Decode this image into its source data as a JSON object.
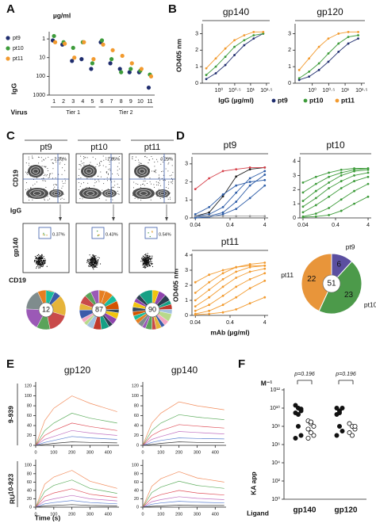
{
  "panel_labels": [
    "A",
    "B",
    "C",
    "D",
    "E",
    "F"
  ],
  "chart_data": [
    {
      "type": "scatter",
      "unit": "µg/ml",
      "ylabel": "IgG",
      "xlabel": "Virus",
      "categories": [
        "1",
        "2",
        "3",
        "4",
        "5",
        "6",
        "7",
        "8",
        "9",
        "10",
        "11"
      ],
      "group_labels": [
        "Tier 1",
        "Tier 2"
      ],
      "log_y": true,
      "ylim": [
        1000,
        0.5
      ],
      "yticks": [
        1,
        10,
        100,
        1000
      ],
      "legend": "left",
      "series": [
        {
          "name": "pt9",
          "color": "#1f2d6e",
          "values": [
            1.2,
            2,
            15,
            12,
            40,
            1.5,
            20,
            40,
            60,
            60,
            400
          ]
        },
        {
          "name": "pt10",
          "color": "#3d9b3a",
          "values": [
            0.7,
            1.5,
            3,
            1.5,
            20,
            1.2,
            12,
            60,
            40,
            50,
            80
          ]
        },
        {
          "name": "pt11",
          "color": "#f29a2e",
          "values": [
            1.5,
            1.8,
            10,
            1.5,
            12,
            2,
            4,
            8,
            20,
            40,
            100
          ]
        }
      ]
    },
    {
      "type": "line",
      "title": "gp140",
      "ylabel": "OD405 nm",
      "xlabel": "IgG (µg/ml)",
      "log_x": true,
      "markers": true,
      "legend": "bottom",
      "x": [
        0.4,
        0.8,
        1.6,
        3.1,
        6.3,
        12.5,
        25
      ],
      "xlim": [
        0.3,
        40
      ],
      "xticks": [
        {
          "value": 1,
          "label": "10⁰"
        },
        {
          "value": 3.16,
          "label": "10⁰·⁵"
        },
        {
          "value": 10,
          "label": "10¹"
        },
        {
          "value": 31.6,
          "label": "10¹·⁵"
        }
      ],
      "ylim": [
        0,
        3.5
      ],
      "yticks": [
        0,
        1,
        2,
        3
      ],
      "series": [
        {
          "name": "pt9",
          "color": "#1f2d6e",
          "values": [
            0.25,
            0.6,
            1.1,
            1.7,
            2.3,
            2.7,
            3.0
          ]
        },
        {
          "name": "pt10",
          "color": "#3d9b3a",
          "values": [
            0.5,
            1.0,
            1.6,
            2.2,
            2.6,
            2.9,
            3.0
          ]
        },
        {
          "name": "pt11",
          "color": "#f29a2e",
          "values": [
            0.9,
            1.5,
            2.1,
            2.6,
            2.9,
            3.1,
            3.1
          ]
        }
      ]
    },
    {
      "type": "line",
      "title": "gp120",
      "log_x": true,
      "markers": true,
      "x": [
        0.4,
        0.8,
        1.6,
        3.1,
        6.3,
        12.5,
        25
      ],
      "xlim": [
        0.3,
        40
      ],
      "xticks": [
        {
          "value": 1,
          "label": "10⁰"
        },
        {
          "value": 3.16,
          "label": "10⁰·⁵"
        },
        {
          "value": 10,
          "label": "10¹"
        },
        {
          "value": 31.6,
          "label": "10¹·⁵"
        }
      ],
      "ylim": [
        0,
        3.5
      ],
      "yticks": [
        0,
        1,
        2,
        3
      ],
      "series": [
        {
          "color": "#1f2d6e",
          "values": [
            0.2,
            0.4,
            0.8,
            1.3,
            1.9,
            2.4,
            2.7
          ]
        },
        {
          "color": "#3d9b3a",
          "values": [
            0.3,
            0.7,
            1.2,
            1.8,
            2.4,
            2.8,
            2.9
          ]
        },
        {
          "color": "#f29a2e",
          "values": [
            0.8,
            1.5,
            2.2,
            2.7,
            3.0,
            3.1,
            3.1
          ]
        }
      ]
    },
    {
      "type": "line",
      "title": "pt9",
      "log_x": true,
      "markers": true,
      "x": [
        0.04,
        0.1,
        0.25,
        0.6,
        1.5,
        4
      ],
      "xlim": [
        0.032,
        5
      ],
      "xticks": [
        0.04,
        0.4,
        4
      ],
      "ylim": [
        0,
        3.3
      ],
      "yticks": [
        0,
        1,
        2,
        3
      ],
      "series": [
        {
          "color": "#222222",
          "values": [
            0.1,
            0.3,
            1.2,
            2.3,
            2.7,
            2.8
          ]
        },
        {
          "color": "#d6404a",
          "values": [
            1.6,
            2.2,
            2.6,
            2.7,
            2.8,
            2.8
          ]
        },
        {
          "color": "#2f5ea8",
          "values": [
            0.1,
            0.2,
            0.6,
            1.4,
            2.2,
            2.6
          ]
        },
        {
          "color": "#2f5ea8",
          "values": [
            0.05,
            0.1,
            0.3,
            0.9,
            1.8,
            2.4
          ]
        },
        {
          "color": "#2f5ea8",
          "values": [
            0.2,
            0.6,
            1.3,
            1.8,
            2.0,
            2.1
          ]
        },
        {
          "color": "#2f5ea8",
          "values": [
            0.0,
            0.05,
            0.2,
            0.5,
            1.1,
            1.8
          ]
        },
        {
          "color": "#999999",
          "values": [
            0.1,
            0.1,
            0.1,
            0.1,
            0.1,
            0.1
          ]
        }
      ]
    },
    {
      "type": "line",
      "title": "pt10",
      "log_x": true,
      "markers": true,
      "x": [
        0.04,
        0.1,
        0.25,
        0.6,
        1.5,
        4
      ],
      "xlim": [
        0.032,
        5
      ],
      "xticks": [
        0.04,
        0.4,
        4
      ],
      "ylim": [
        0,
        4.2
      ],
      "yticks": [
        0,
        1,
        2,
        3,
        4
      ],
      "series": [
        {
          "color": "#3d9b3a",
          "values": [
            1.8,
            2.4,
            2.9,
            3.2,
            3.4,
            3.5
          ]
        },
        {
          "color": "#3d9b3a",
          "values": [
            1.2,
            1.9,
            2.5,
            3.0,
            3.3,
            3.4
          ]
        },
        {
          "color": "#3d9b3a",
          "values": [
            0.8,
            1.4,
            2.1,
            2.6,
            3.0,
            3.2
          ]
        },
        {
          "color": "#3d9b3a",
          "values": [
            0.4,
            0.9,
            1.5,
            2.1,
            2.6,
            2.9
          ]
        },
        {
          "color": "#3d9b3a",
          "values": [
            2.5,
            2.9,
            3.2,
            3.4,
            3.5,
            3.5
          ]
        },
        {
          "color": "#3d9b3a",
          "values": [
            0.1,
            0.3,
            0.7,
            1.3,
            1.9,
            2.4
          ]
        },
        {
          "color": "#3d9b3a",
          "values": [
            0.05,
            0.1,
            0.2,
            0.5,
            1.0,
            1.5
          ]
        }
      ]
    },
    {
      "type": "line",
      "title": "pt11",
      "ylabel": "OD405 nm",
      "xlabel": "mAb (µg/ml)",
      "log_x": true,
      "markers": true,
      "x": [
        0.04,
        0.1,
        0.25,
        0.6,
        1.5,
        4
      ],
      "xlim": [
        0.032,
        5
      ],
      "xticks": [
        0.04,
        0.4,
        4
      ],
      "ylim": [
        0,
        4
      ],
      "yticks": [
        0,
        1,
        2,
        3,
        4
      ],
      "series": [
        {
          "color": "#f29a2e",
          "values": [
            1.5,
            2.2,
            2.8,
            3.2,
            3.4,
            3.5
          ]
        },
        {
          "color": "#f29a2e",
          "values": [
            1.0,
            1.7,
            2.4,
            2.9,
            3.2,
            3.3
          ]
        },
        {
          "color": "#f29a2e",
          "values": [
            0.6,
            1.2,
            1.9,
            2.5,
            2.9,
            3.1
          ]
        },
        {
          "color": "#f29a2e",
          "values": [
            0.3,
            0.7,
            1.3,
            1.9,
            2.4,
            2.8
          ]
        },
        {
          "color": "#f29a2e",
          "values": [
            0.1,
            0.3,
            0.7,
            1.2,
            1.8,
            2.3
          ]
        },
        {
          "color": "#f29a2e",
          "values": [
            0.05,
            0.1,
            0.2,
            0.4,
            0.8,
            1.2
          ]
        },
        {
          "color": "#f29a2e",
          "values": [
            2.2,
            2.7,
            3.0,
            3.2,
            3.3,
            3.3
          ]
        }
      ]
    },
    {
      "type": "pie",
      "categories": [
        "pt9",
        "pt10",
        "pt11"
      ],
      "values": [
        6,
        23,
        22
      ],
      "colors": [
        "#5b4fa0",
        "#4c9a4a",
        "#e8953a"
      ],
      "total": 51
    },
    {
      "type": "line",
      "title": "gp120",
      "row_label": "9-939",
      "markers": false,
      "x": [
        0,
        50,
        100,
        200,
        300,
        450
      ],
      "xlim": [
        0,
        460
      ],
      "xticks": [
        0,
        100,
        200,
        300,
        400
      ],
      "ylim": [
        0,
        125
      ],
      "yticks": [
        0,
        20,
        40,
        60,
        80,
        100,
        120
      ],
      "series": [
        {
          "color": "#f28b5a",
          "values": [
            0,
            50,
            75,
            100,
            85,
            68
          ]
        },
        {
          "color": "#5fae5f",
          "values": [
            0,
            30,
            45,
            65,
            55,
            45
          ]
        },
        {
          "color": "#e0505a",
          "values": [
            0,
            20,
            30,
            45,
            38,
            30
          ]
        },
        {
          "color": "#c070c0",
          "values": [
            0,
            12,
            18,
            30,
            25,
            20
          ]
        },
        {
          "color": "#5a7fd0",
          "values": [
            0,
            6,
            10,
            18,
            15,
            12
          ]
        },
        {
          "color": "#333333",
          "values": [
            0,
            2,
            4,
            7,
            6,
            5
          ]
        }
      ]
    },
    {
      "type": "line",
      "title": "gp140",
      "markers": false,
      "x": [
        0,
        50,
        100,
        200,
        300,
        450
      ],
      "xlim": [
        0,
        460
      ],
      "xticks": [
        0,
        100,
        200,
        300,
        400
      ],
      "ylim": [
        0,
        125
      ],
      "yticks": [
        0,
        20,
        40,
        60,
        80,
        100,
        120
      ],
      "series": [
        {
          "color": "#f28b5a",
          "values": [
            0,
            45,
            65,
            88,
            80,
            72
          ]
        },
        {
          "color": "#5fae5f",
          "values": [
            0,
            30,
            45,
            62,
            57,
            52
          ]
        },
        {
          "color": "#e0505a",
          "values": [
            0,
            20,
            30,
            42,
            39,
            35
          ]
        },
        {
          "color": "#c070c0",
          "values": [
            0,
            12,
            18,
            28,
            26,
            23
          ]
        },
        {
          "color": "#5a7fd0",
          "values": [
            0,
            6,
            10,
            15,
            14,
            13
          ]
        },
        {
          "color": "#333333",
          "values": [
            0,
            2,
            4,
            7,
            6,
            6
          ]
        }
      ]
    },
    {
      "type": "line",
      "row_label": "10-923",
      "ylabel": "RU",
      "xlabel": "Time (s)",
      "markers": false,
      "x": [
        0,
        50,
        100,
        200,
        300,
        450
      ],
      "xlim": [
        0,
        460
      ],
      "xticks": [
        0,
        100,
        200,
        300,
        400
      ],
      "ylim": [
        0,
        110
      ],
      "yticks": [
        0,
        20,
        40,
        60,
        80,
        100
      ],
      "series": [
        {
          "color": "#f28b5a",
          "values": [
            0,
            55,
            72,
            88,
            62,
            45
          ]
        },
        {
          "color": "#5fae5f",
          "values": [
            0,
            38,
            52,
            65,
            45,
            33
          ]
        },
        {
          "color": "#e0505a",
          "values": [
            0,
            25,
            34,
            44,
            31,
            23
          ]
        },
        {
          "color": "#c070c0",
          "values": [
            0,
            15,
            20,
            28,
            20,
            15
          ]
        },
        {
          "color": "#5a7fd0",
          "values": [
            0,
            8,
            11,
            16,
            11,
            8
          ]
        },
        {
          "color": "#333333",
          "values": [
            0,
            3,
            4,
            6,
            4,
            3
          ]
        }
      ]
    },
    {
      "type": "line",
      "markers": false,
      "x": [
        0,
        50,
        100,
        200,
        300,
        450
      ],
      "xlim": [
        0,
        460
      ],
      "xticks": [
        0,
        100,
        200,
        300,
        400
      ],
      "ylim": [
        0,
        110
      ],
      "yticks": [
        0,
        20,
        40,
        60,
        80,
        100
      ],
      "series": [
        {
          "color": "#f28b5a",
          "values": [
            0,
            50,
            68,
            85,
            70,
            60
          ]
        },
        {
          "color": "#5fae5f",
          "values": [
            0,
            35,
            48,
            62,
            52,
            45
          ]
        },
        {
          "color": "#e0505a",
          "values": [
            0,
            22,
            30,
            40,
            34,
            29
          ]
        },
        {
          "color": "#c070c0",
          "values": [
            0,
            13,
            18,
            25,
            21,
            18
          ]
        },
        {
          "color": "#5a7fd0",
          "values": [
            0,
            7,
            10,
            14,
            12,
            10
          ]
        },
        {
          "color": "#333333",
          "values": [
            0,
            2,
            3,
            5,
            4,
            4
          ]
        }
      ]
    },
    {
      "type": "dot",
      "categories": [
        "gp140",
        "gp120"
      ],
      "ylabel": "KA app",
      "unit": "M⁻¹",
      "xlabel": "Ligand",
      "log_y": true,
      "ylim": [
        1,
        1000000000000.0
      ],
      "yticks": [
        {
          "value": 1,
          "label": "10⁰"
        },
        {
          "value": 100,
          "label": "10²"
        },
        {
          "value": 10000,
          "label": "10⁴"
        },
        {
          "value": 1000000,
          "label": "10⁶"
        },
        {
          "value": 100000000,
          "label": "10⁸"
        },
        {
          "value": 10000000000,
          "label": "10¹⁰"
        },
        {
          "value": 1000000000000,
          "label": "10¹²"
        }
      ],
      "annotations": [
        "p=0.196",
        "p=0.196"
      ],
      "series": [
        {
          "color": "#111111",
          "open": false,
          "values": [
            [
              20000000000.0,
              10000000000.0,
              5000000000.0,
              3000000000.0,
              100000000.0,
              10000000.0,
              5000000.0,
              2000000000.0,
              8000000000.0
            ],
            [
              10000000000.0,
              5000000000.0,
              10000000000.0,
              2000000000.0,
              100000000.0,
              30000000.0,
              10000000.0,
              3000000000.0
            ]
          ]
        },
        {
          "color": "#111111",
          "open": true,
          "values": [
            [
              400000000.0,
              200000000.0,
              100000000.0,
              50000000.0,
              20000000.0,
              10000000.0,
              5000000.0,
              300000000.0
            ],
            [
              200000000.0,
              100000000.0,
              50000000.0,
              20000000.0,
              10000000.0,
              100000000.0
            ]
          ]
        }
      ]
    }
  ],
  "flow": {
    "columns": [
      "pt9",
      "pt10",
      "pt11"
    ],
    "igg_gates": [
      "2.39%",
      "2.85%",
      "0.29%"
    ],
    "gp140_gates": [
      "0.37%",
      "0.43%",
      "0.54%"
    ],
    "top_ylabel": "CD19",
    "top_xlabel": "IgG",
    "bottom_ylabel": "gp140",
    "bottom_xlabel": "CD19",
    "clone_counts": [
      12,
      87,
      90
    ]
  }
}
